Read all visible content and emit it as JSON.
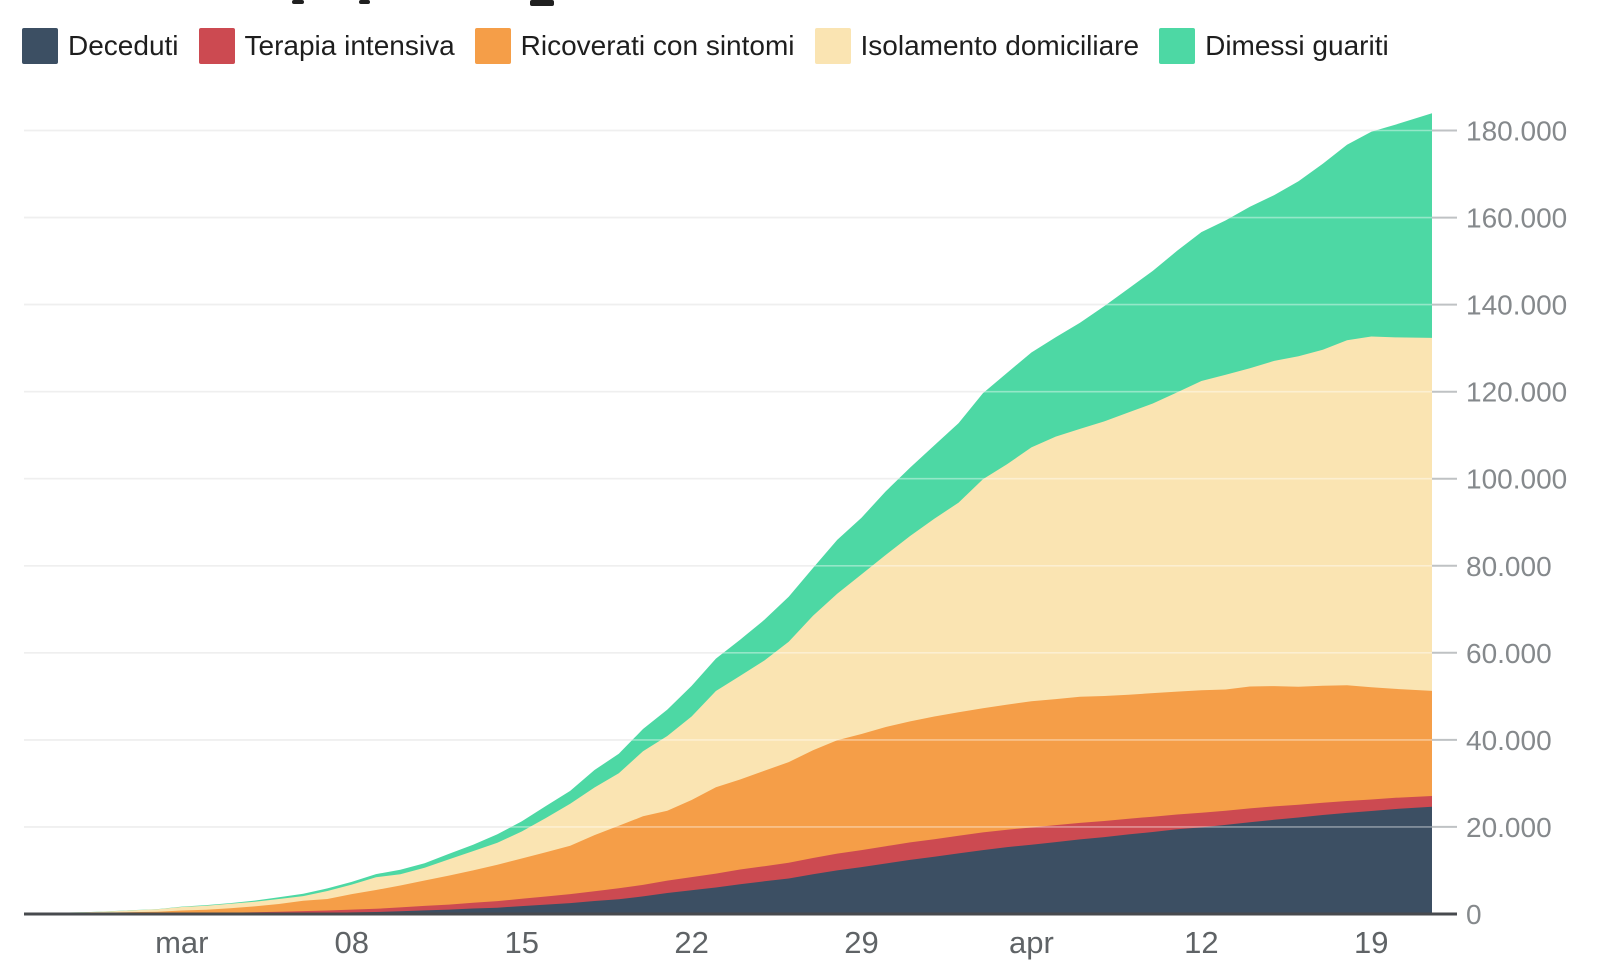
{
  "legend": {
    "items": [
      "Deceduti",
      "Terapia intensiva",
      "Ricoverati con sintomi",
      "Isolamento domiciliare",
      "Dimessi guariti"
    ]
  },
  "style": {
    "background": "#ffffff",
    "grid": "#e4e4e4",
    "grid_overlay": "rgba(255,255,255,0.4)",
    "tick": "#bfc2c4",
    "axis_line": "#474a4e",
    "axis_text_y": "#85898c",
    "axis_text_x": "#5f6366",
    "legend_text": "#1e1e1e"
  },
  "chart_data": {
    "type": "area",
    "stacked": true,
    "x_label": "",
    "y_label": "",
    "x": [
      "2020-02-24",
      "2020-02-25",
      "2020-02-26",
      "2020-02-27",
      "2020-02-28",
      "2020-02-29",
      "2020-03-01",
      "2020-03-02",
      "2020-03-03",
      "2020-03-04",
      "2020-03-05",
      "2020-03-06",
      "2020-03-07",
      "2020-03-08",
      "2020-03-09",
      "2020-03-10",
      "2020-03-11",
      "2020-03-12",
      "2020-03-13",
      "2020-03-14",
      "2020-03-15",
      "2020-03-16",
      "2020-03-17",
      "2020-03-18",
      "2020-03-19",
      "2020-03-20",
      "2020-03-21",
      "2020-03-22",
      "2020-03-23",
      "2020-03-24",
      "2020-03-25",
      "2020-03-26",
      "2020-03-27",
      "2020-03-28",
      "2020-03-29",
      "2020-03-30",
      "2020-03-31",
      "2020-04-01",
      "2020-04-02",
      "2020-04-03",
      "2020-04-04",
      "2020-04-05",
      "2020-04-06",
      "2020-04-07",
      "2020-04-08",
      "2020-04-09",
      "2020-04-10",
      "2020-04-11",
      "2020-04-12",
      "2020-04-13",
      "2020-04-14",
      "2020-04-15",
      "2020-04-16",
      "2020-04-17",
      "2020-04-18",
      "2020-04-19",
      "2020-04-20",
      "2020-04-21"
    ],
    "x_ticks": [
      {
        "date": "2020-03-01",
        "label": "mar"
      },
      {
        "date": "2020-03-08",
        "label": "08"
      },
      {
        "date": "2020-03-15",
        "label": "15"
      },
      {
        "date": "2020-03-22",
        "label": "22"
      },
      {
        "date": "2020-03-29",
        "label": "29"
      },
      {
        "date": "2020-04-05",
        "label": "apr"
      },
      {
        "date": "2020-04-12",
        "label": "12"
      },
      {
        "date": "2020-04-19",
        "label": "19"
      }
    ],
    "y_axis": {
      "max": 180000,
      "ticks": [
        {
          "value": 0,
          "label": "0"
        },
        {
          "value": 20000,
          "label": "20.000"
        },
        {
          "value": 40000,
          "label": "40.000"
        },
        {
          "value": 60000,
          "label": "60.000"
        },
        {
          "value": 80000,
          "label": "80.000"
        },
        {
          "value": 100000,
          "label": "100.000"
        },
        {
          "value": 120000,
          "label": "120.000"
        },
        {
          "value": 140000,
          "label": "140.000"
        },
        {
          "value": 160000,
          "label": "160.000"
        },
        {
          "value": 180000,
          "label": "180.000"
        }
      ]
    },
    "series": [
      {
        "name": "Deceduti",
        "color": "#3c4f63",
        "values": [
          7,
          10,
          12,
          17,
          21,
          29,
          34,
          52,
          79,
          107,
          148,
          197,
          233,
          366,
          463,
          631,
          827,
          1016,
          1266,
          1441,
          1809,
          2158,
          2503,
          2978,
          3405,
          4032,
          4825,
          5476,
          6077,
          6820,
          7503,
          8165,
          9134,
          10023,
          10779,
          11591,
          12428,
          13155,
          13915,
          14681,
          15362,
          15887,
          16523,
          17127,
          17669,
          18279,
          18849,
          19468,
          19899,
          20465,
          21067,
          21645,
          22170,
          22745,
          23227,
          23660,
          24114,
          24648
        ]
      },
      {
        "name": "Terapia intensiva",
        "color": "#cc4a51",
        "values": [
          26,
          35,
          36,
          56,
          64,
          105,
          140,
          166,
          229,
          295,
          351,
          462,
          567,
          650,
          733,
          877,
          1028,
          1153,
          1328,
          1518,
          1672,
          1851,
          2060,
          2257,
          2498,
          2655,
          2857,
          3009,
          3204,
          3396,
          3489,
          3612,
          3732,
          3856,
          3906,
          3981,
          4023,
          4035,
          4053,
          4068,
          3994,
          3977,
          3898,
          3792,
          3693,
          3605,
          3497,
          3381,
          3343,
          3260,
          3186,
          3079,
          2936,
          2812,
          2733,
          2635,
          2573,
          2471
        ]
      },
      {
        "name": "Ricoverati con sintomi",
        "color": "#f59e48",
        "values": [
          101,
          114,
          128,
          248,
          345,
          401,
          639,
          742,
          1034,
          1346,
          1790,
          2394,
          2651,
          3557,
          4316,
          5038,
          5838,
          6650,
          7426,
          8372,
          9268,
          10197,
          11108,
          12894,
          14363,
          15757,
          16020,
          17708,
          19846,
          20692,
          21937,
          23112,
          24753,
          26029,
          26676,
          27386,
          27795,
          28192,
          28403,
          28540,
          28741,
          29010,
          28949,
          28976,
          28718,
          28485,
          28399,
          28242,
          28144,
          27847,
          28023,
          27643,
          27106,
          26893,
          26604,
          25786,
          25033,
          24134
        ]
      },
      {
        "name": "Isolamento domiciliare",
        "color": "#fae4b2",
        "values": [
          94,
          162,
          221,
          284,
          412,
          543,
          798,
          927,
          1000,
          1065,
          1155,
          1060,
          1843,
          2180,
          2936,
          2599,
          2925,
          3724,
          4435,
          5036,
          6201,
          7860,
          9663,
          10925,
          12090,
          14935,
          17193,
          19185,
          22116,
          23783,
          25300,
          27653,
          30920,
          33648,
          36653,
          39533,
          42588,
          45420,
          48134,
          52579,
          55270,
          58320,
          60313,
          61557,
          63084,
          64873,
          66534,
          68744,
          71063,
          72333,
          73094,
          74696,
          75945,
          77176,
          79252,
          80589,
          80758,
          81094
        ]
      },
      {
        "name": "Dimessi guariti",
        "color": "#4dd8a4",
        "values": [
          1,
          1,
          3,
          45,
          46,
          50,
          83,
          149,
          160,
          276,
          414,
          523,
          589,
          622,
          724,
          1004,
          1045,
          1258,
          1439,
          1966,
          2335,
          2749,
          2941,
          4025,
          4440,
          5129,
          6072,
          7024,
          7432,
          8326,
          9362,
          10361,
          10950,
          12384,
          13030,
          14620,
          15729,
          16847,
          18278,
          19758,
          20996,
          21815,
          22837,
          24392,
          26491,
          28470,
          30455,
          32534,
          34211,
          35435,
          37130,
          38092,
          40164,
          42727,
          44927,
          47055,
          48877,
          51600
        ]
      }
    ]
  }
}
